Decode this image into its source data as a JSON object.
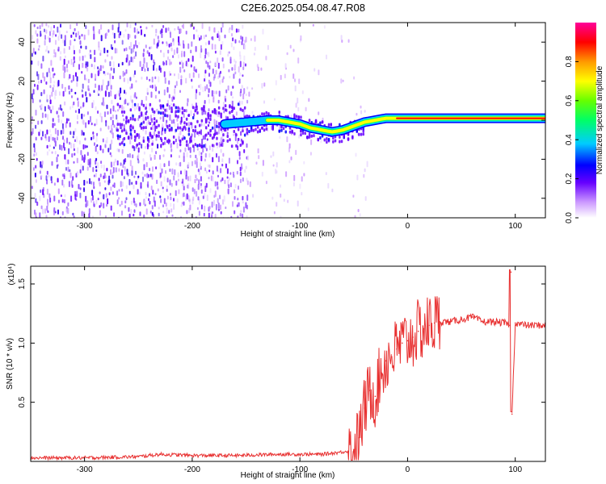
{
  "figure_title": "C2E6.2025.054.08.47.R08",
  "chart_data": [
    {
      "type": "heatmap",
      "xlabel": "Height of straight line (km)",
      "ylabel": "Frequency (Hz)",
      "xlim": [
        -350,
        128
      ],
      "ylim": [
        -50,
        50
      ],
      "x_ticks": [
        -300,
        -200,
        -100,
        0,
        100
      ],
      "y_ticks": [
        -40,
        -20,
        0,
        20,
        40
      ],
      "colorbar": {
        "label": "Normalized spectral amplitude",
        "range": [
          0,
          1
        ],
        "ticks": [
          "0.0",
          "0.2",
          "0.4",
          "0.6",
          "0.8"
        ],
        "colors": [
          "#ffffff",
          "#cc99ff",
          "#6600ff",
          "#0000ff",
          "#00ccff",
          "#00ff66",
          "#66ff00",
          "#ffff00",
          "#ff9900",
          "#ff0000",
          "#ff0099"
        ]
      },
      "ridge": {
        "x": [
          -170,
          -150,
          -130,
          -120,
          -110,
          -100,
          -90,
          -80,
          -70,
          -60,
          -50,
          -40,
          -30,
          -20,
          -10,
          0,
          20,
          40,
          60,
          80,
          100,
          128
        ],
        "freq": [
          -2,
          -1,
          0,
          0,
          -1,
          -2,
          -4,
          -5,
          -6,
          -5,
          -3,
          -1,
          0,
          1,
          1,
          1,
          1,
          1,
          1,
          1,
          1,
          1
        ]
      }
    },
    {
      "type": "line",
      "xlabel": "Height of straight line (km)",
      "ylabel": "SNR (10 * v/v)",
      "y_multiplier": "(x10⁴)",
      "xlim": [
        -350,
        128
      ],
      "ylim": [
        0,
        1.65
      ],
      "x_ticks": [
        -300,
        -200,
        -100,
        0,
        100
      ],
      "y_ticks": [
        "0.5",
        "1.0",
        "1.5"
      ],
      "series": [
        {
          "color": "#e83030",
          "x": [
            -350,
            -300,
            -250,
            -230,
            -200,
            -160,
            -120,
            -100,
            -80,
            -60,
            -50,
            -45,
            -40,
            -35,
            -30,
            -25,
            -20,
            -15,
            -10,
            -5,
            0,
            5,
            10,
            15,
            20,
            25,
            30,
            40,
            50,
            60,
            70,
            80,
            90,
            95,
            96,
            97,
            100,
            110,
            128
          ],
          "y": [
            0.03,
            0.03,
            0.04,
            0.06,
            0.05,
            0.05,
            0.06,
            0.06,
            0.06,
            0.08,
            0.1,
            0.2,
            0.45,
            0.6,
            0.55,
            0.75,
            0.85,
            0.9,
            0.95,
            1.0,
            1.02,
            1.05,
            1.1,
            1.12,
            1.15,
            1.17,
            1.18,
            1.18,
            1.2,
            1.22,
            1.18,
            1.18,
            1.17,
            1.15,
            1.6,
            0.4,
            1.17,
            1.15,
            1.15
          ]
        }
      ]
    }
  ]
}
